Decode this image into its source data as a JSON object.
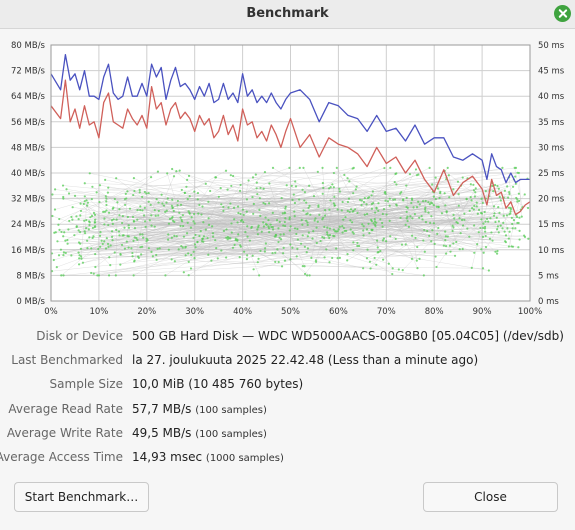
{
  "window": {
    "title": "Benchmark"
  },
  "chart_data": {
    "type": "line",
    "left_axis": {
      "ylim": [
        0,
        80
      ],
      "ticks": [
        "0 MB/s",
        "8 MB/s",
        "16 MB/s",
        "24 MB/s",
        "32 MB/s",
        "40 MB/s",
        "48 MB/s",
        "56 MB/s",
        "64 MB/s",
        "72 MB/s",
        "80 MB/s"
      ]
    },
    "right_axis": {
      "ylim": [
        0,
        50
      ],
      "ticks": [
        "0 ms",
        "5 ms",
        "10 ms",
        "15 ms",
        "20 ms",
        "25 ms",
        "30 ms",
        "35 ms",
        "40 ms",
        "45 ms",
        "50 ms"
      ]
    },
    "x_axis": {
      "xlim": [
        0,
        100
      ],
      "ticks": [
        "0%",
        "10%",
        "20%",
        "30%",
        "40%",
        "50%",
        "60%",
        "70%",
        "80%",
        "90%",
        "100%"
      ]
    },
    "grid": true,
    "series": [
      {
        "axis": "left",
        "color": "#4a52c0",
        "x": [
          0,
          2,
          3,
          4,
          5,
          6,
          7,
          8,
          9,
          10,
          11,
          12,
          13,
          14,
          15,
          16,
          17,
          18,
          19,
          20,
          21,
          22,
          23,
          24,
          25,
          26,
          27,
          28,
          29,
          30,
          31,
          32,
          33,
          34,
          35,
          36,
          37,
          38,
          39,
          40,
          41,
          42,
          43,
          44,
          45,
          46,
          47,
          48,
          49,
          50,
          52,
          54,
          56,
          58,
          60,
          62,
          64,
          66,
          68,
          70,
          72,
          74,
          76,
          78,
          80,
          82,
          84,
          86,
          88,
          90,
          91,
          92,
          93,
          94,
          95,
          96,
          97,
          98,
          99,
          100
        ],
        "values": [
          71,
          66,
          77,
          69,
          71,
          66,
          72,
          64,
          64,
          63,
          70,
          74,
          65,
          63,
          64,
          70,
          64,
          64,
          68,
          64,
          74,
          70,
          73,
          63,
          69,
          73,
          67,
          68,
          66,
          63,
          67,
          64,
          68,
          62,
          63,
          68,
          63,
          65,
          62,
          71,
          64,
          66,
          62,
          64,
          62,
          65,
          62,
          60,
          63,
          65,
          66,
          63,
          56,
          62,
          61,
          58,
          57,
          53,
          58,
          53,
          54,
          50,
          55,
          49,
          51,
          51,
          45,
          44,
          46,
          44,
          38,
          46,
          42,
          41,
          37,
          40,
          37,
          38,
          38,
          38
        ]
      },
      {
        "axis": "left",
        "color": "#d0605a",
        "x": [
          0,
          2,
          3,
          4,
          5,
          6,
          7,
          8,
          9,
          10,
          11,
          12,
          13,
          14,
          15,
          16,
          17,
          18,
          19,
          20,
          21,
          22,
          23,
          24,
          25,
          26,
          27,
          28,
          29,
          30,
          31,
          32,
          33,
          34,
          35,
          36,
          37,
          38,
          39,
          40,
          41,
          42,
          43,
          44,
          45,
          46,
          47,
          48,
          49,
          50,
          52,
          54,
          56,
          58,
          60,
          62,
          64,
          66,
          68,
          70,
          72,
          74,
          76,
          78,
          80,
          82,
          84,
          86,
          88,
          90,
          91,
          92,
          93,
          94,
          95,
          96,
          97,
          98,
          99,
          100
        ],
        "values": [
          61,
          57,
          69,
          56,
          60,
          54,
          61,
          55,
          56,
          51,
          62,
          65,
          56,
          55,
          54,
          60,
          57,
          55,
          58,
          54,
          67,
          60,
          62,
          55,
          60,
          62,
          57,
          59,
          57,
          53,
          58,
          55,
          57,
          51,
          53,
          58,
          52,
          55,
          50,
          60,
          55,
          56,
          51,
          53,
          50,
          55,
          52,
          48,
          53,
          57,
          48,
          52,
          45,
          51,
          49,
          48,
          46,
          42,
          48,
          43,
          45,
          40,
          44,
          38,
          34,
          41,
          33,
          37,
          39,
          35,
          30,
          38,
          33,
          34,
          29,
          31,
          27,
          28,
          30,
          31
        ]
      }
    ],
    "access_time_scatter": {
      "axis": "right",
      "color": "#55cc55",
      "samples": 1000,
      "range_ms": [
        5,
        26
      ],
      "mean_ms": 14.93
    }
  },
  "info": {
    "disk_label": "Disk or Device",
    "disk_value": "500 GB Hard Disk — WDC WD5000AACS-00G8B0 [05.04C05] (/dev/sdb)",
    "last_label": "Last Benchmarked",
    "last_value": "la 27. joulukuuta 2025 22.42.48 (Less than a minute ago)",
    "sample_label": "Sample Size",
    "sample_value": "10,0 MiB (10 485 760 bytes)",
    "read_label": "Average Read Rate",
    "read_value": "57,7 MB/s",
    "read_note": "(100 samples)",
    "write_label": "Average Write Rate",
    "write_value": "49,5 MB/s",
    "write_note": "(100 samples)",
    "access_label": "Average Access Time",
    "access_value": "14,93 msec",
    "access_note": "(1000 samples)"
  },
  "buttons": {
    "start": "Start Benchmark…",
    "close": "Close"
  }
}
